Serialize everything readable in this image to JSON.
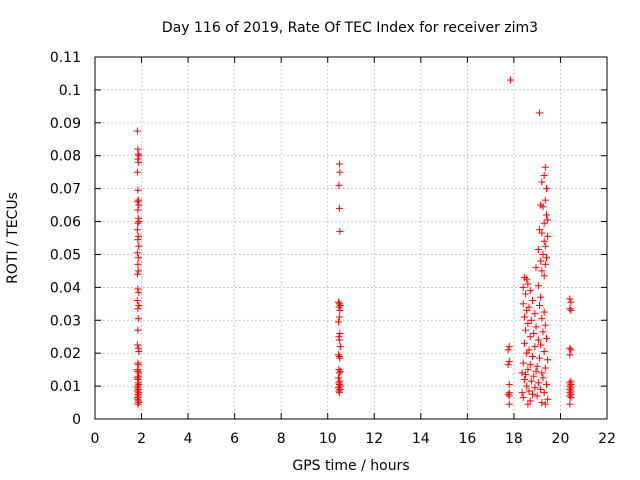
{
  "chart_data": {
    "type": "scatter",
    "title": "Day 116 of 2019, Rate Of TEC Index for receiver zim3",
    "xlabel": "GPS time / hours",
    "ylabel": "ROTI / TECUs",
    "xlim": [
      0,
      22
    ],
    "ylim": [
      0,
      0.11
    ],
    "xticks": [
      0,
      2,
      4,
      6,
      8,
      10,
      12,
      14,
      16,
      18,
      20,
      22
    ],
    "xtick_labels": [
      "0",
      "2",
      "4",
      "6",
      "8",
      "10",
      "12",
      "14",
      "16",
      "18",
      "20",
      "22"
    ],
    "yticks": [
      0,
      0.01,
      0.02,
      0.03,
      0.04,
      0.05,
      0.06,
      0.07,
      0.08,
      0.09,
      0.1,
      0.11
    ],
    "ytick_labels": [
      "0",
      "0.01",
      "0.02",
      "0.03",
      "0.04",
      "0.05",
      "0.06",
      "0.07",
      "0.08",
      "0.09",
      "0.1",
      "0.11"
    ],
    "grid": true,
    "marker": "+",
    "marker_color": "#ff0000",
    "series": [
      {
        "name": "ROTI",
        "points": [
          [
            1.82,
            0.0875
          ],
          [
            1.84,
            0.082
          ],
          [
            1.86,
            0.0805
          ],
          [
            1.84,
            0.079
          ],
          [
            1.86,
            0.078
          ],
          [
            1.88,
            0.08
          ],
          [
            1.82,
            0.075
          ],
          [
            1.84,
            0.0695
          ],
          [
            1.86,
            0.0665
          ],
          [
            1.82,
            0.066
          ],
          [
            1.88,
            0.065
          ],
          [
            1.84,
            0.0635
          ],
          [
            1.86,
            0.061
          ],
          [
            1.88,
            0.06
          ],
          [
            1.84,
            0.0595
          ],
          [
            1.82,
            0.0575
          ],
          [
            1.86,
            0.0555
          ],
          [
            1.84,
            0.0545
          ],
          [
            1.88,
            0.0525
          ],
          [
            1.82,
            0.0505
          ],
          [
            1.86,
            0.049
          ],
          [
            1.84,
            0.047
          ],
          [
            1.86,
            0.045
          ],
          [
            1.82,
            0.044
          ],
          [
            1.84,
            0.0395
          ],
          [
            1.86,
            0.0385
          ],
          [
            1.82,
            0.036
          ],
          [
            1.88,
            0.0345
          ],
          [
            1.84,
            0.0335
          ],
          [
            1.86,
            0.0305
          ],
          [
            1.84,
            0.027
          ],
          [
            1.82,
            0.0225
          ],
          [
            1.86,
            0.0215
          ],
          [
            1.88,
            0.0205
          ],
          [
            1.84,
            0.017
          ],
          [
            1.86,
            0.0165
          ],
          [
            1.82,
            0.015
          ],
          [
            1.84,
            0.0145
          ],
          [
            1.88,
            0.014
          ],
          [
            1.86,
            0.013
          ],
          [
            1.82,
            0.0125
          ],
          [
            1.84,
            0.012
          ],
          [
            1.86,
            0.011
          ],
          [
            1.88,
            0.0105
          ],
          [
            1.82,
            0.01
          ],
          [
            1.84,
            0.0095
          ],
          [
            1.86,
            0.009
          ],
          [
            1.82,
            0.0085
          ],
          [
            1.88,
            0.008
          ],
          [
            1.84,
            0.0075
          ],
          [
            1.86,
            0.007
          ],
          [
            1.82,
            0.0065
          ],
          [
            1.84,
            0.006
          ],
          [
            1.86,
            0.0055
          ],
          [
            1.88,
            0.005
          ],
          [
            1.84,
            0.0045
          ],
          [
            10.5,
            0.0775
          ],
          [
            10.52,
            0.075
          ],
          [
            10.48,
            0.071
          ],
          [
            10.5,
            0.064
          ],
          [
            10.52,
            0.057
          ],
          [
            10.46,
            0.0355
          ],
          [
            10.5,
            0.035
          ],
          [
            10.54,
            0.0345
          ],
          [
            10.48,
            0.034
          ],
          [
            10.52,
            0.033
          ],
          [
            10.5,
            0.031
          ],
          [
            10.46,
            0.0295
          ],
          [
            10.52,
            0.026
          ],
          [
            10.48,
            0.025
          ],
          [
            10.5,
            0.024
          ],
          [
            10.54,
            0.022
          ],
          [
            10.46,
            0.0195
          ],
          [
            10.5,
            0.019
          ],
          [
            10.52,
            0.0185
          ],
          [
            10.48,
            0.015
          ],
          [
            10.54,
            0.0145
          ],
          [
            10.5,
            0.014
          ],
          [
            10.46,
            0.0125
          ],
          [
            10.52,
            0.0115
          ],
          [
            10.48,
            0.011
          ],
          [
            10.5,
            0.0105
          ],
          [
            10.54,
            0.01
          ],
          [
            10.46,
            0.0095
          ],
          [
            10.52,
            0.009
          ],
          [
            10.48,
            0.0085
          ],
          [
            10.5,
            0.008
          ],
          [
            17.85,
            0.103
          ],
          [
            19.1,
            0.093
          ],
          [
            19.35,
            0.0765
          ],
          [
            19.3,
            0.074
          ],
          [
            19.2,
            0.072
          ],
          [
            19.4,
            0.07
          ],
          [
            19.35,
            0.0665
          ],
          [
            19.15,
            0.065
          ],
          [
            19.25,
            0.0645
          ],
          [
            19.4,
            0.062
          ],
          [
            19.45,
            0.0605
          ],
          [
            19.3,
            0.0595
          ],
          [
            19.1,
            0.0575
          ],
          [
            19.2,
            0.0565
          ],
          [
            19.45,
            0.0555
          ],
          [
            19.3,
            0.054
          ],
          [
            19.35,
            0.0525
          ],
          [
            19.05,
            0.0515
          ],
          [
            19.25,
            0.05
          ],
          [
            19.4,
            0.049
          ],
          [
            19.15,
            0.048
          ],
          [
            19.35,
            0.047
          ],
          [
            18.95,
            0.046
          ],
          [
            19.2,
            0.045
          ],
          [
            18.45,
            0.043
          ],
          [
            18.55,
            0.0425
          ],
          [
            19.3,
            0.0435
          ],
          [
            18.6,
            0.041
          ],
          [
            18.4,
            0.04
          ],
          [
            19.05,
            0.0405
          ],
          [
            18.7,
            0.039
          ],
          [
            18.5,
            0.038
          ],
          [
            19.15,
            0.037
          ],
          [
            18.8,
            0.036
          ],
          [
            18.4,
            0.035
          ],
          [
            18.65,
            0.034
          ],
          [
            19.1,
            0.0345
          ],
          [
            18.55,
            0.033
          ],
          [
            18.9,
            0.032
          ],
          [
            19.3,
            0.0325
          ],
          [
            18.45,
            0.031
          ],
          [
            18.75,
            0.03
          ],
          [
            19.2,
            0.0305
          ],
          [
            18.6,
            0.029
          ],
          [
            18.95,
            0.028
          ],
          [
            19.35,
            0.0285
          ],
          [
            18.5,
            0.027
          ],
          [
            18.85,
            0.026
          ],
          [
            19.25,
            0.0265
          ],
          [
            18.7,
            0.025
          ],
          [
            19.05,
            0.024
          ],
          [
            19.4,
            0.0245
          ],
          [
            18.45,
            0.023
          ],
          [
            18.9,
            0.022
          ],
          [
            19.15,
            0.0225
          ],
          [
            18.65,
            0.021
          ],
          [
            19.3,
            0.0205
          ],
          [
            18.55,
            0.02
          ],
          [
            18.8,
            0.019
          ],
          [
            19.1,
            0.0185
          ],
          [
            19.45,
            0.018
          ],
          [
            18.4,
            0.017
          ],
          [
            18.7,
            0.0165
          ],
          [
            19.0,
            0.016
          ],
          [
            19.35,
            0.0155
          ],
          [
            18.6,
            0.015
          ],
          [
            18.95,
            0.0145
          ],
          [
            19.2,
            0.014
          ],
          [
            18.5,
            0.0135
          ],
          [
            18.85,
            0.013
          ],
          [
            19.25,
            0.0125
          ],
          [
            18.45,
            0.012
          ],
          [
            18.75,
            0.0115
          ],
          [
            19.05,
            0.011
          ],
          [
            19.4,
            0.0105
          ],
          [
            18.55,
            0.01
          ],
          [
            18.9,
            0.0095
          ],
          [
            19.15,
            0.009
          ],
          [
            18.65,
            0.0085
          ],
          [
            19.3,
            0.008
          ],
          [
            18.8,
            0.0075
          ],
          [
            19.0,
            0.007
          ],
          [
            18.4,
            0.0065
          ],
          [
            19.45,
            0.006
          ],
          [
            18.7,
            0.0055
          ],
          [
            19.2,
            0.005
          ],
          [
            18.6,
            0.0045
          ],
          [
            19.35,
            0.0045
          ],
          [
            18.35,
            0.008
          ],
          [
            18.35,
            0.014
          ],
          [
            17.8,
            0.022
          ],
          [
            17.75,
            0.021
          ],
          [
            17.8,
            0.0175
          ],
          [
            17.75,
            0.0165
          ],
          [
            17.8,
            0.0105
          ],
          [
            17.8,
            0.008
          ],
          [
            17.75,
            0.0075
          ],
          [
            17.8,
            0.007
          ],
          [
            17.8,
            0.0045
          ],
          [
            20.4,
            0.0365
          ],
          [
            20.45,
            0.0355
          ],
          [
            20.4,
            0.0335
          ],
          [
            20.45,
            0.033
          ],
          [
            20.4,
            0.0215
          ],
          [
            20.45,
            0.021
          ],
          [
            20.4,
            0.0195
          ],
          [
            20.45,
            0.0115
          ],
          [
            20.4,
            0.011
          ],
          [
            20.45,
            0.0105
          ],
          [
            20.4,
            0.01
          ],
          [
            20.45,
            0.0095
          ],
          [
            20.4,
            0.009
          ],
          [
            20.45,
            0.0085
          ],
          [
            20.4,
            0.008
          ],
          [
            20.45,
            0.0075
          ],
          [
            20.4,
            0.007
          ],
          [
            20.45,
            0.0065
          ],
          [
            20.4,
            0.0045
          ]
        ]
      }
    ]
  }
}
